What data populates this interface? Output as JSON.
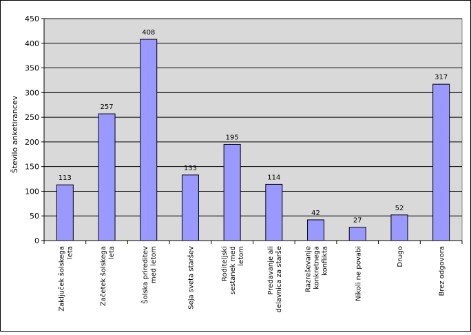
{
  "chart_data": {
    "type": "bar",
    "title": "",
    "xlabel": "",
    "ylabel": "Število anketirancev",
    "ylim": [
      0,
      450
    ],
    "yticks": [
      0,
      50,
      100,
      150,
      200,
      250,
      300,
      350,
      400,
      450
    ],
    "grid": true,
    "legend": "none",
    "categories": [
      [
        "Zaključek šolskega",
        "leta"
      ],
      [
        "Začetek šolskega",
        "leta"
      ],
      [
        "Šolska prireditev",
        "med letom"
      ],
      [
        "Seja sveta staršev"
      ],
      [
        "Roditeljski",
        "sestanek med",
        "letom"
      ],
      [
        "Predavanje ali",
        "delavnica za starše"
      ],
      [
        "Razreševanje",
        "konkretnega",
        "konflikta"
      ],
      [
        "Nikoli ne povabi"
      ],
      [
        "Drugo"
      ],
      [
        "Brez odgovora"
      ]
    ],
    "values": [
      113,
      257,
      408,
      133,
      195,
      114,
      42,
      27,
      52,
      317
    ],
    "colors": {
      "bar_fill": "#9999ff",
      "bar_stroke": "#000000",
      "plot_background": "#d9d9d9",
      "gridline": "#000000"
    }
  }
}
